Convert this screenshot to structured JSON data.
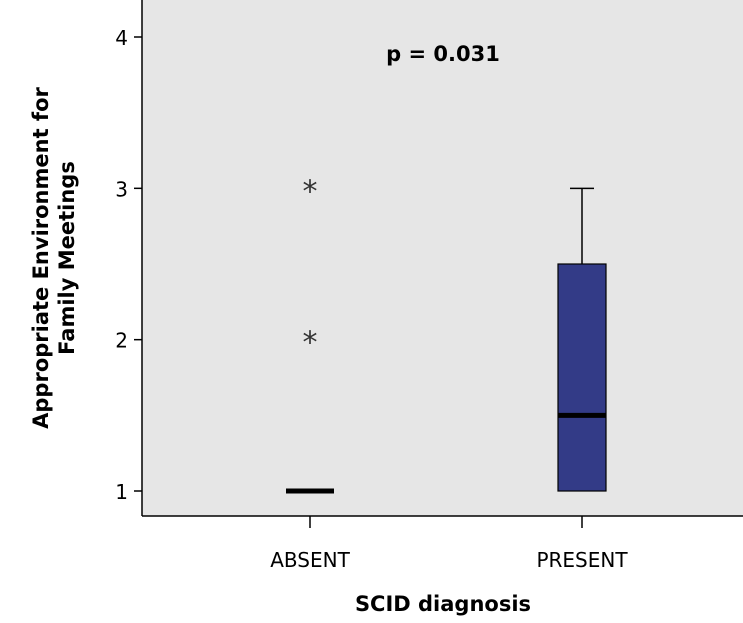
{
  "chart_data": {
    "type": "box",
    "title": "",
    "annotation": "p = 0.031",
    "xlabel": "SCID diagnosis",
    "ylabel_lines": [
      "Appropriate Environment for",
      "Family Meetings"
    ],
    "categories": [
      "ABSENT",
      "PRESENT"
    ],
    "ylim": [
      0.85,
      4.0
    ],
    "yticks": [
      1,
      2,
      3,
      4
    ],
    "boxes": [
      {
        "category": "ABSENT",
        "min": 1,
        "q1": 1,
        "median": 1,
        "q3": 1,
        "max": 1,
        "outliers": [],
        "extremes": [
          2,
          3
        ]
      },
      {
        "category": "PRESENT",
        "min": 1,
        "q1": 1,
        "median": 1.5,
        "q3": 2.5,
        "max": 3,
        "outliers": [],
        "extremes": []
      }
    ],
    "colors": {
      "plot_bg": "#e6e6e6",
      "box_fill": "#333b87",
      "median": "#000000",
      "axis": "#000000",
      "marker": "#333333"
    },
    "grid": false,
    "legend": "none"
  }
}
